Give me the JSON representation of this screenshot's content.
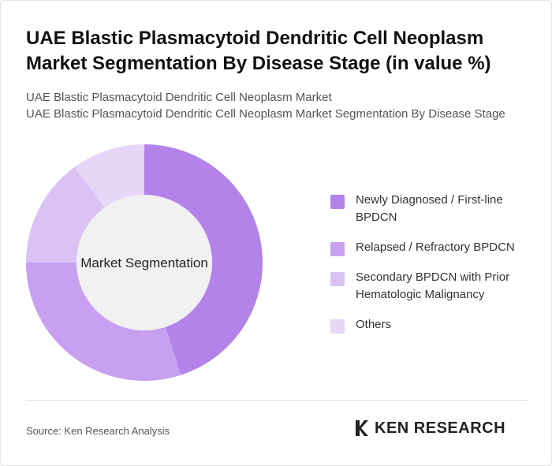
{
  "title": "UAE Blastic Plasmacytoid Dendritic Cell Neoplasm Market Segmentation By Disease Stage (in value %)",
  "subtitle_lines": [
    "UAE Blastic Plasmacytoid Dendritic Cell Neoplasm Market",
    "UAE Blastic Plasmacytoid Dendritic Cell Neoplasm Market Segmentation By Disease Stage"
  ],
  "chart_data": {
    "type": "donut",
    "center_label": "Market Segmentation",
    "categories": [
      "Newly Diagnosed / First-line BPDCN",
      "Relapsed / Refractory BPDCN",
      "Secondary BPDCN with Prior Hematologic Malignancy",
      "Others"
    ],
    "values": [
      45,
      30,
      15,
      10
    ],
    "colors": [
      "#b383ea",
      "#c7a0f0",
      "#dbc2f5",
      "#e6d6f8"
    ]
  },
  "source": "Source: Ken Research Analysis",
  "logo": "KEN RESEARCH"
}
